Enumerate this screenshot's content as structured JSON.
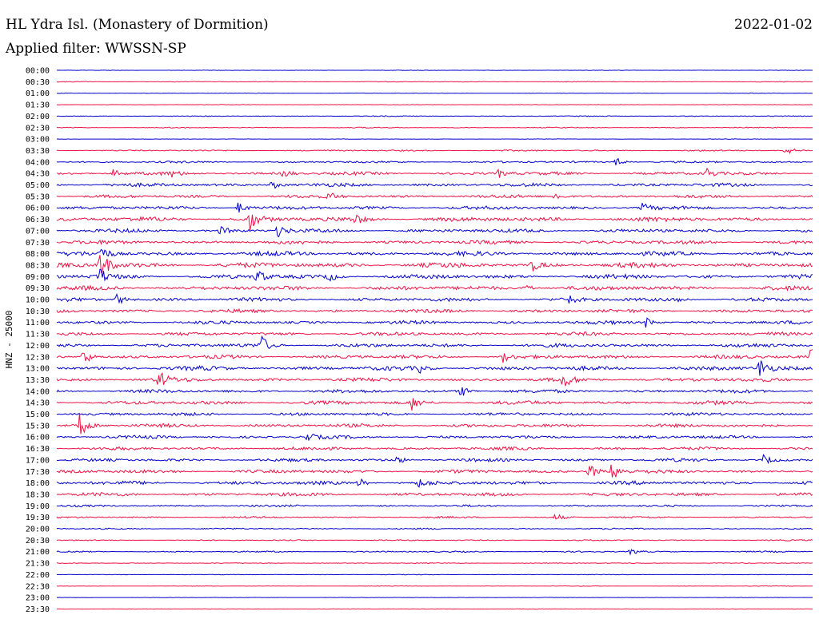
{
  "header": {
    "station": "HL Ydra Isl. (Monastery of Dormition)",
    "date": "2022-01-02",
    "filter": "Applied filter: WWSSN-SP"
  },
  "chart_data": {
    "type": "line",
    "ylabel": "HNZ - 25000",
    "row_labels": [
      "00:00",
      "00:30",
      "01:00",
      "01:30",
      "02:00",
      "02:30",
      "03:00",
      "03:30",
      "04:00",
      "04:30",
      "05:00",
      "05:30",
      "06:00",
      "06:30",
      "07:00",
      "07:30",
      "08:00",
      "08:30",
      "09:00",
      "09:30",
      "10:00",
      "10:30",
      "11:00",
      "11:30",
      "12:00",
      "12:30",
      "13:00",
      "13:30",
      "14:00",
      "14:30",
      "15:00",
      "15:30",
      "16:00",
      "16:30",
      "17:00",
      "17:30",
      "18:00",
      "18:30",
      "19:00",
      "19:30",
      "20:00",
      "20:30",
      "21:00",
      "21:30",
      "22:00",
      "22:30",
      "23:00",
      "23:30"
    ],
    "colors": [
      "#0000cc",
      "#ee1144"
    ],
    "noise_level": [
      0.3,
      0.5,
      0.4,
      0.3,
      0.6,
      0.7,
      0.3,
      1.0,
      1.4,
      2.2,
      2.4,
      2.2,
      2.4,
      3.2,
      2.6,
      2.6,
      3.0,
      3.4,
      3.0,
      3.0,
      2.6,
      2.4,
      2.4,
      2.4,
      2.6,
      2.6,
      3.0,
      2.6,
      2.4,
      2.6,
      2.2,
      2.4,
      2.2,
      2.2,
      2.2,
      2.4,
      2.6,
      2.4,
      1.4,
      1.2,
      1.0,
      0.8,
      1.0,
      0.6,
      0.4,
      0.4,
      0.3,
      0.3
    ],
    "events": [
      {
        "row": 7,
        "t": 0.965,
        "amp": 6
      },
      {
        "row": 8,
        "t": 0.74,
        "amp": 6
      },
      {
        "row": 9,
        "t": 0.075,
        "amp": 5
      },
      {
        "row": 9,
        "t": 0.15,
        "amp": 4
      },
      {
        "row": 9,
        "t": 0.3,
        "amp": 6
      },
      {
        "row": 9,
        "t": 0.585,
        "amp": 5
      },
      {
        "row": 9,
        "t": 0.86,
        "amp": 7
      },
      {
        "row": 10,
        "t": 0.285,
        "amp": 6
      },
      {
        "row": 11,
        "t": 0.36,
        "amp": 5
      },
      {
        "row": 11,
        "t": 0.66,
        "amp": 6
      },
      {
        "row": 12,
        "t": 0.24,
        "amp": 8
      },
      {
        "row": 12,
        "t": 0.775,
        "amp": 6
      },
      {
        "row": 13,
        "t": 0.255,
        "amp": 14
      },
      {
        "row": 13,
        "t": 0.395,
        "amp": 6
      },
      {
        "row": 14,
        "t": 0.293,
        "amp": 8
      },
      {
        "row": 14,
        "t": 0.217,
        "amp": 5
      },
      {
        "row": 16,
        "t": 0.059,
        "amp": 9
      },
      {
        "row": 17,
        "t": 0.058,
        "amp": 22
      },
      {
        "row": 17,
        "t": 0.63,
        "amp": 7
      },
      {
        "row": 18,
        "t": 0.055,
        "amp": 12
      },
      {
        "row": 18,
        "t": 0.265,
        "amp": 10
      },
      {
        "row": 18,
        "t": 0.36,
        "amp": 6
      },
      {
        "row": 19,
        "t": 0.62,
        "amp": 6
      },
      {
        "row": 20,
        "t": 0.08,
        "amp": 8
      },
      {
        "row": 20,
        "t": 0.675,
        "amp": 7
      },
      {
        "row": 20,
        "t": 0.82,
        "amp": 5
      },
      {
        "row": 22,
        "t": 0.78,
        "amp": 7
      },
      {
        "row": 24,
        "t": 0.27,
        "amp": 13
      },
      {
        "row": 25,
        "t": 0.035,
        "amp": 12
      },
      {
        "row": 25,
        "t": 0.59,
        "amp": 7
      },
      {
        "row": 25,
        "t": 0.998,
        "amp": 10
      },
      {
        "row": 26,
        "t": 0.93,
        "amp": 13
      },
      {
        "row": 26,
        "t": 0.48,
        "amp": 5
      },
      {
        "row": 27,
        "t": 0.135,
        "amp": 12
      },
      {
        "row": 27,
        "t": 0.67,
        "amp": 10
      },
      {
        "row": 28,
        "t": 0.535,
        "amp": 7
      },
      {
        "row": 29,
        "t": 0.47,
        "amp": 9
      },
      {
        "row": 31,
        "t": 0.03,
        "amp": 18
      },
      {
        "row": 32,
        "t": 0.33,
        "amp": 6
      },
      {
        "row": 34,
        "t": 0.45,
        "amp": 5
      },
      {
        "row": 34,
        "t": 0.935,
        "amp": 6
      },
      {
        "row": 35,
        "t": 0.705,
        "amp": 12
      },
      {
        "row": 35,
        "t": 0.735,
        "amp": 14
      },
      {
        "row": 36,
        "t": 0.4,
        "amp": 6
      },
      {
        "row": 36,
        "t": 0.48,
        "amp": 5
      },
      {
        "row": 39,
        "t": 0.66,
        "amp": 5
      },
      {
        "row": 42,
        "t": 0.76,
        "amp": 4
      }
    ]
  }
}
